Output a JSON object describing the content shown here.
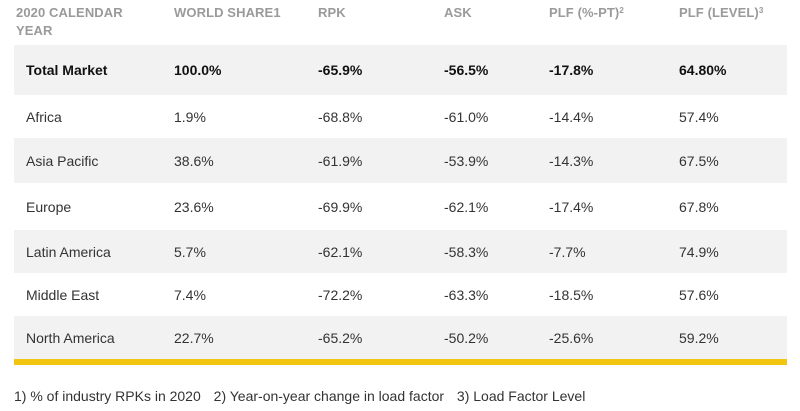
{
  "columns": [
    {
      "line1": "2020 CALENDAR",
      "line2": "YEAR",
      "sup": ""
    },
    {
      "line1": "WORLD SHARE1",
      "line2": "",
      "sup": ""
    },
    {
      "line1": "RPK",
      "line2": "",
      "sup": ""
    },
    {
      "line1": "ASK",
      "line2": "",
      "sup": ""
    },
    {
      "line1": "PLF (%-PT)",
      "line2": "",
      "sup": "2"
    },
    {
      "line1": "PLF (LEVEL)",
      "line2": "",
      "sup": "3"
    }
  ],
  "rows": [
    {
      "region": "Total Market",
      "share": "100.0%",
      "rpk": "-65.9%",
      "ask": "-56.5%",
      "plf_pt": "-17.8%",
      "plf_level": "64.80%"
    },
    {
      "region": "Africa",
      "share": "1.9%",
      "rpk": "-68.8%",
      "ask": "-61.0%",
      "plf_pt": "-14.4%",
      "plf_level": "57.4%"
    },
    {
      "region": "Asia Pacific",
      "share": "38.6%",
      "rpk": "-61.9%",
      "ask": "-53.9%",
      "plf_pt": "-14.3%",
      "plf_level": "67.5%"
    },
    {
      "region": "Europe",
      "share": "23.6%",
      "rpk": "-69.9%",
      "ask": "-62.1%",
      "plf_pt": "-17.4%",
      "plf_level": "67.8%"
    },
    {
      "region": "Latin America",
      "share": "5.7%",
      "rpk": "-62.1%",
      "ask": "-58.3%",
      "plf_pt": "-7.7%",
      "plf_level": "74.9%"
    },
    {
      "region": "Middle East",
      "share": "7.4%",
      "rpk": "-72.2%",
      "ask": "-63.3%",
      "plf_pt": "-18.5%",
      "plf_level": "57.6%"
    },
    {
      "region": "North America",
      "share": "22.7%",
      "rpk": "-65.2%",
      "ask": "-50.2%",
      "plf_pt": "-25.6%",
      "plf_level": "59.2%"
    }
  ],
  "footnotes": [
    "1) % of industry RPKs in 2020",
    "2) Year-on-year change in load factor",
    "3) Load Factor Level"
  ],
  "colors": {
    "accent_bar": "#f2c511",
    "row_shade": "#f2f2f2",
    "header_text": "#9a9a9a"
  }
}
